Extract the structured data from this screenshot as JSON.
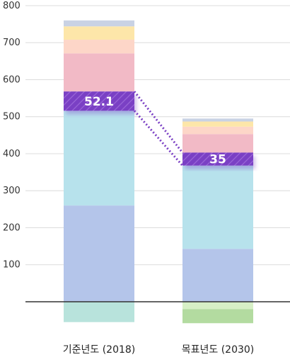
{
  "chart_data": {
    "type": "bar",
    "stacked": true,
    "categories": [
      "기준년도 (2018)",
      "목표년도 (2030)"
    ],
    "yticks": [
      100,
      200,
      300,
      400,
      500,
      600,
      700,
      800
    ],
    "ylim": [
      -90,
      800
    ],
    "grid": true,
    "colors": {
      "grid": "#dcdcdc",
      "axis": "#333333",
      "highlight": "#7a3fc4",
      "connector": "#7a3fc4"
    },
    "positive_stacks": [
      {
        "category": "기준년도 (2018)",
        "segments": [
          {
            "value": 260,
            "color": "#b4c5ea"
          },
          {
            "value": 256,
            "color": "#b7e2ec"
          },
          {
            "value": 52.1,
            "color": "#7a3fc4",
            "label": "52.1",
            "highlight": true
          },
          {
            "value": 103,
            "color": "#f2bac6"
          },
          {
            "value": 37,
            "color": "#fdd6c8"
          },
          {
            "value": 36,
            "color": "#fde6a9"
          },
          {
            "value": 16,
            "color": "#c9d2e4"
          }
        ]
      },
      {
        "category": "목표년도 (2030)",
        "segments": [
          {
            "value": 143,
            "color": "#b4c5ea"
          },
          {
            "value": 225,
            "color": "#b7e2ec"
          },
          {
            "value": 35,
            "color": "#7a3fc4",
            "label": "35",
            "highlight": true
          },
          {
            "value": 50,
            "color": "#f2bac6"
          },
          {
            "value": 20,
            "color": "#fdd6c8"
          },
          {
            "value": 14,
            "color": "#fde6a9"
          },
          {
            "value": 8,
            "color": "#c9d2e4"
          }
        ]
      }
    ],
    "negative_stacks": [
      {
        "category": "기준년도 (2018)",
        "segments": [
          {
            "value": -55,
            "color": "#b8e3dc"
          }
        ]
      },
      {
        "category": "목표년도 (2030)",
        "segments": [
          {
            "value": -20,
            "color": "#d7f0c6"
          },
          {
            "value": -38,
            "color": "#b3dba0"
          }
        ]
      }
    ]
  }
}
